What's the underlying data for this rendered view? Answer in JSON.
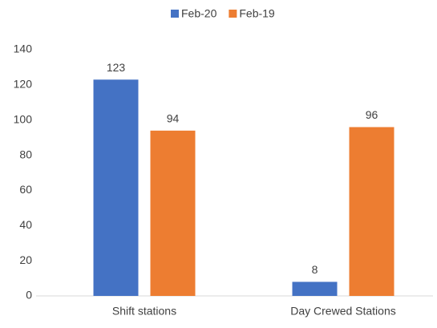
{
  "chart_data": {
    "type": "bar",
    "categories": [
      "Shift stations",
      "Day Crewed Stations"
    ],
    "series": [
      {
        "name": "Feb-20",
        "color": "#4472c4",
        "values": [
          123,
          8
        ]
      },
      {
        "name": "Feb-19",
        "color": "#ed7d31",
        "values": [
          94,
          96
        ]
      }
    ],
    "ylim": [
      0,
      140
    ],
    "yticks": [
      0,
      20,
      40,
      60,
      80,
      100,
      120,
      140
    ],
    "grid": false,
    "legend": "top"
  }
}
